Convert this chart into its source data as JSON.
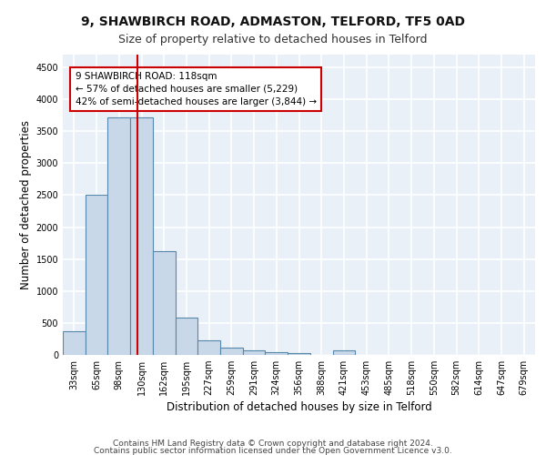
{
  "title1": "9, SHAWBIRCH ROAD, ADMASTON, TELFORD, TF5 0AD",
  "title2": "Size of property relative to detached houses in Telford",
  "xlabel": "Distribution of detached houses by size in Telford",
  "ylabel": "Number of detached properties",
  "footer1": "Contains HM Land Registry data © Crown copyright and database right 2024.",
  "footer2": "Contains public sector information licensed under the Open Government Licence v3.0.",
  "categories": [
    "33sqm",
    "65sqm",
    "98sqm",
    "130sqm",
    "162sqm",
    "195sqm",
    "227sqm",
    "259sqm",
    "291sqm",
    "324sqm",
    "356sqm",
    "388sqm",
    "421sqm",
    "453sqm",
    "485sqm",
    "518sqm",
    "550sqm",
    "582sqm",
    "614sqm",
    "647sqm",
    "679sqm"
  ],
  "values": [
    370,
    2500,
    3720,
    3720,
    1630,
    590,
    230,
    110,
    65,
    45,
    35,
    0,
    65,
    0,
    0,
    0,
    0,
    0,
    0,
    0,
    0
  ],
  "bar_color": "#c8d8e8",
  "bar_edge_color": "#5588aa",
  "bar_edge_width": 0.8,
  "vline_x": 2.82,
  "vline_color": "#cc0000",
  "annotation_text": "9 SHAWBIRCH ROAD: 118sqm\n← 57% of detached houses are smaller (5,229)\n42% of semi-detached houses are larger (3,844) →",
  "annotation_box_color": "#ffffff",
  "annotation_box_edge": "#cc0000",
  "ylim": [
    0,
    4700
  ],
  "yticks": [
    0,
    500,
    1000,
    1500,
    2000,
    2500,
    3000,
    3500,
    4000,
    4500
  ],
  "bg_color": "#eaf0f8",
  "grid_color": "#ffffff",
  "title1_fontsize": 10,
  "title2_fontsize": 9,
  "xlabel_fontsize": 8.5,
  "ylabel_fontsize": 8.5,
  "tick_fontsize": 7,
  "footer_fontsize": 6.5,
  "ann_fontsize": 7.5
}
